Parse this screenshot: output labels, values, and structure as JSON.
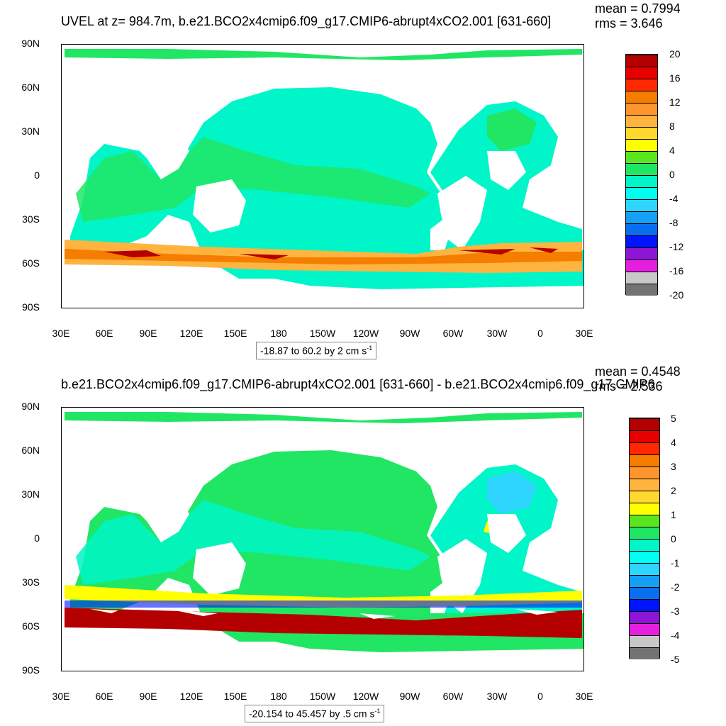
{
  "colors": [
    "#737373",
    "#c8c8c8",
    "#e51ee0",
    "#8c15d6",
    "#0014ff",
    "#0a6ef0",
    "#14a0f5",
    "#2ed5ff",
    "#00fff0",
    "#00f5c8",
    "#20e664",
    "#5ae61e",
    "#ffff00",
    "#ffd72e",
    "#ffb440",
    "#ff962d",
    "#f57d00",
    "#ff2800",
    "#e60000",
    "#b40000"
  ],
  "panels": [
    {
      "id": "top",
      "title": "UVEL at z= 984.7m, b.e21.BCO2x4cmip6.f09_g17.CMIP6-abrupt4xCO2.001 [631-660]",
      "mean_label": "mean = 0.7994",
      "rms_label": "rms = 3.646",
      "range_label": "-18.87 to 60.2 by 2 cm s",
      "range_sup": "-1",
      "colorbar_labels": [
        "20",
        "16",
        "12",
        "8",
        "4",
        "0",
        "-4",
        "-8",
        "-12",
        "-16",
        "-20"
      ]
    },
    {
      "id": "bottom",
      "title": "b.e21.BCO2x4cmip6.f09_g17.CMIP6-abrupt4xCO2.001 [631-660] - b.e21.BCO2x4cmip6.f09_g17.CMIP6",
      "mean_label": "mean = 0.4548",
      "rms_label": "rms = 2.536",
      "range_label": "-20.154 to 45.457 by .5 cm s",
      "range_sup": "-1",
      "colorbar_labels": [
        "5",
        "4",
        "3",
        "2",
        "1",
        "0",
        "-1",
        "-2",
        "-3",
        "-4",
        "-5"
      ]
    }
  ],
  "lat_labels": [
    "90N",
    "60N",
    "30N",
    "0",
    "30S",
    "60S",
    "90S"
  ],
  "lon_labels": [
    "30E",
    "60E",
    "90E",
    "120E",
    "150E",
    "180",
    "150W",
    "120W",
    "90W",
    "60W",
    "30W",
    "0",
    "30E"
  ]
}
